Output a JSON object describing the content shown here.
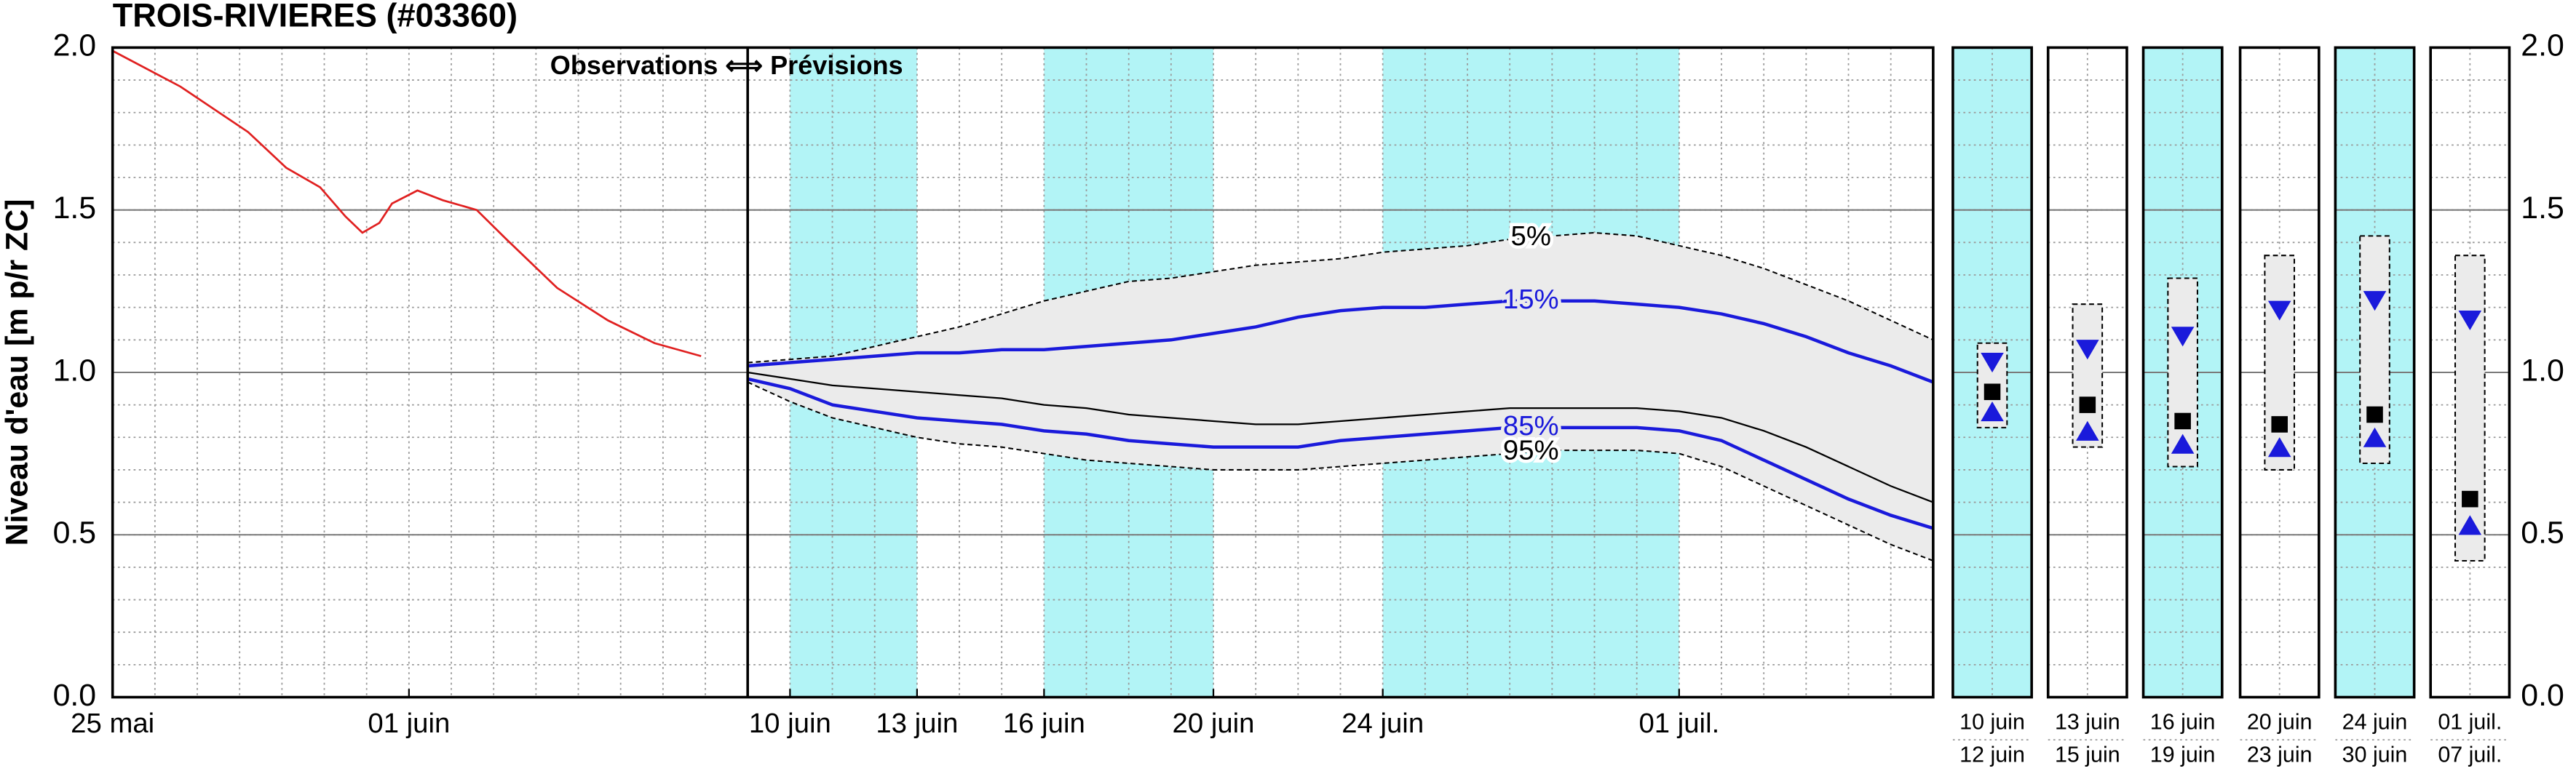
{
  "chart_data": {
    "type": "forecast",
    "title": "TROIS-RIVIERES (#03360)",
    "ylabel": "Niveau d'eau [m p/r ZC]",
    "annotation": "Observations ⟺ Prévisions",
    "xlim": [
      0,
      43
    ],
    "ylim": [
      0,
      2
    ],
    "xticks": [
      {
        "value": 0,
        "label": "25 mai"
      },
      {
        "value": 7,
        "label": "01 juin"
      },
      {
        "value": 16,
        "label": "10 juin"
      },
      {
        "value": 19,
        "label": "13 juin"
      },
      {
        "value": 22,
        "label": "16 juin"
      },
      {
        "value": 26,
        "label": "20 juin"
      },
      {
        "value": 30,
        "label": "24 juin"
      },
      {
        "value": 37,
        "label": "01 juil."
      }
    ],
    "yticks": [
      {
        "value": 0,
        "label": "0.0"
      },
      {
        "value": 0.5,
        "label": "0.5"
      },
      {
        "value": 1,
        "label": "1.0"
      },
      {
        "value": 1.5,
        "label": "1.5"
      },
      {
        "value": 2,
        "label": "2.0"
      }
    ],
    "minor_grid": {
      "x_step": 1,
      "y_step": 0.1
    },
    "band_color": "#b2f4f6",
    "envelope_color": "#ebebeb",
    "shaded_periods": [
      [
        16,
        19
      ],
      [
        22,
        26
      ],
      [
        30,
        37
      ]
    ],
    "observed": {
      "color": "#e02020",
      "x": [
        0,
        1.6,
        3.2,
        4.1,
        4.9,
        5.5,
        5.9,
        6.3,
        6.6,
        7.2,
        7.8,
        8.6,
        9.3,
        10.5,
        11.7,
        12.8,
        13.9
      ],
      "values": [
        1.99,
        1.88,
        1.74,
        1.63,
        1.57,
        1.48,
        1.43,
        1.46,
        1.52,
        1.56,
        1.53,
        1.5,
        1.41,
        1.26,
        1.16,
        1.09,
        1.05
      ]
    },
    "x": [
      15,
      16,
      17,
      18,
      19,
      20,
      21,
      22,
      23,
      24,
      25,
      26,
      27,
      28,
      29,
      30,
      31,
      32,
      33,
      34,
      35,
      36,
      37,
      38,
      39,
      40,
      41,
      42,
      43
    ],
    "series": [
      {
        "name": "5%",
        "color": "#000000",
        "dashed": true,
        "values": [
          1.03,
          1.04,
          1.05,
          1.08,
          1.11,
          1.14,
          1.18,
          1.22,
          1.25,
          1.28,
          1.29,
          1.31,
          1.33,
          1.34,
          1.35,
          1.37,
          1.38,
          1.39,
          1.41,
          1.42,
          1.43,
          1.42,
          1.39,
          1.36,
          1.32,
          1.27,
          1.22,
          1.16,
          1.1
        ]
      },
      {
        "name": "15%",
        "color": "#1a1adb",
        "dashed": false,
        "values": [
          1.02,
          1.03,
          1.04,
          1.05,
          1.06,
          1.06,
          1.07,
          1.07,
          1.08,
          1.09,
          1.1,
          1.12,
          1.14,
          1.17,
          1.19,
          1.2,
          1.2,
          1.21,
          1.22,
          1.22,
          1.22,
          1.21,
          1.2,
          1.18,
          1.15,
          1.11,
          1.06,
          1.02,
          0.97
        ]
      },
      {
        "color": "#000000",
        "dashed": false,
        "values": [
          1.0,
          0.98,
          0.96,
          0.95,
          0.94,
          0.93,
          0.92,
          0.9,
          0.89,
          0.87,
          0.86,
          0.85,
          0.84,
          0.84,
          0.85,
          0.86,
          0.87,
          0.88,
          0.89,
          0.89,
          0.89,
          0.89,
          0.88,
          0.86,
          0.82,
          0.77,
          0.71,
          0.65,
          0.6
        ]
      },
      {
        "name": "85%",
        "color": "#1a1adb",
        "dashed": false,
        "values": [
          0.98,
          0.95,
          0.9,
          0.88,
          0.86,
          0.85,
          0.84,
          0.82,
          0.81,
          0.79,
          0.78,
          0.77,
          0.77,
          0.77,
          0.79,
          0.8,
          0.81,
          0.82,
          0.83,
          0.83,
          0.83,
          0.83,
          0.82,
          0.79,
          0.73,
          0.67,
          0.61,
          0.56,
          0.52
        ]
      },
      {
        "name": "95%",
        "color": "#000000",
        "dashed": true,
        "values": [
          0.97,
          0.91,
          0.86,
          0.83,
          0.8,
          0.78,
          0.77,
          0.75,
          0.73,
          0.72,
          0.71,
          0.7,
          0.7,
          0.7,
          0.71,
          0.72,
          0.73,
          0.74,
          0.75,
          0.76,
          0.76,
          0.76,
          0.75,
          0.71,
          0.65,
          0.59,
          0.53,
          0.47,
          0.42
        ]
      }
    ],
    "panels": [
      {
        "from": "10 juin",
        "to": "12 juin",
        "shaded": true,
        "high": 1.09,
        "p15": 1.03,
        "median": 0.94,
        "p85": 0.88,
        "low": 0.83
      },
      {
        "from": "13 juin",
        "to": "15 juin",
        "shaded": false,
        "high": 1.21,
        "p15": 1.07,
        "median": 0.9,
        "p85": 0.82,
        "low": 0.77
      },
      {
        "from": "16 juin",
        "to": "19 juin",
        "shaded": true,
        "high": 1.29,
        "p15": 1.11,
        "median": 0.85,
        "p85": 0.78,
        "low": 0.71
      },
      {
        "from": "20 juin",
        "to": "23 juin",
        "shaded": false,
        "high": 1.36,
        "p15": 1.19,
        "median": 0.84,
        "p85": 0.77,
        "low": 0.7
      },
      {
        "from": "24 juin",
        "to": "30 juin",
        "shaded": true,
        "high": 1.42,
        "p15": 1.22,
        "median": 0.87,
        "p85": 0.8,
        "low": 0.72
      },
      {
        "from": "01 juil.",
        "to": "07 juil.",
        "shaded": false,
        "high": 1.36,
        "p15": 1.16,
        "median": 0.61,
        "p85": 0.53,
        "low": 0.42
      }
    ]
  }
}
